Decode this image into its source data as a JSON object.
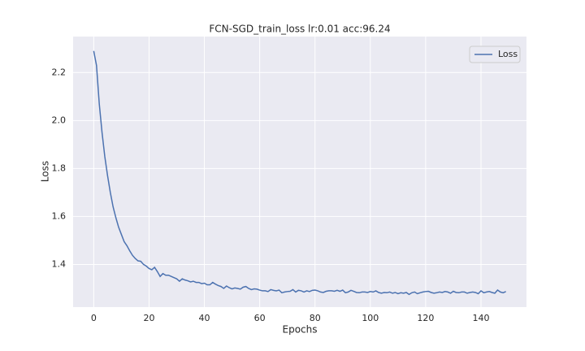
{
  "chart_data": {
    "type": "line",
    "title": "FCN-SGD_train_loss lr:0.01 acc:96.24",
    "xlabel": "Epochs",
    "ylabel": "Loss",
    "x": [
      0,
      1,
      2,
      3,
      4,
      5,
      6,
      7,
      8,
      9,
      10,
      11,
      12,
      13,
      14,
      15,
      16,
      17,
      18,
      19,
      20,
      21,
      22,
      23,
      24,
      25,
      26,
      27,
      28,
      29,
      30,
      31,
      32,
      33,
      34,
      35,
      36,
      37,
      38,
      39,
      40,
      41,
      42,
      43,
      44,
      45,
      46,
      47,
      48,
      49,
      50,
      51,
      52,
      53,
      54,
      55,
      56,
      57,
      58,
      59,
      60,
      61,
      62,
      63,
      64,
      65,
      66,
      67,
      68,
      69,
      70,
      71,
      72,
      73,
      74,
      75,
      76,
      77,
      78,
      79,
      80,
      81,
      82,
      83,
      84,
      85,
      86,
      87,
      88,
      89,
      90,
      91,
      92,
      93,
      94,
      95,
      96,
      97,
      98,
      99,
      100,
      101,
      102,
      103,
      104,
      105,
      106,
      107,
      108,
      109,
      110,
      111,
      112,
      113,
      114,
      115,
      116,
      117,
      118,
      119,
      120,
      121,
      122,
      123,
      124,
      125,
      126,
      127,
      128,
      129,
      130,
      131,
      132,
      133,
      134,
      135,
      136,
      137,
      138,
      139,
      140,
      141,
      142,
      143,
      144,
      145,
      146,
      147,
      148,
      149
    ],
    "series": [
      {
        "name": "Loss",
        "color": "#4c72b0",
        "values": [
          2.29,
          2.23,
          2.07,
          1.95,
          1.85,
          1.77,
          1.7,
          1.64,
          1.595,
          1.555,
          1.525,
          1.495,
          1.478,
          1.457,
          1.438,
          1.425,
          1.415,
          1.413,
          1.4,
          1.393,
          1.383,
          1.378,
          1.388,
          1.37,
          1.35,
          1.362,
          1.355,
          1.355,
          1.35,
          1.345,
          1.34,
          1.33,
          1.34,
          1.335,
          1.332,
          1.327,
          1.33,
          1.325,
          1.325,
          1.32,
          1.322,
          1.315,
          1.315,
          1.325,
          1.318,
          1.312,
          1.308,
          1.3,
          1.31,
          1.303,
          1.298,
          1.302,
          1.3,
          1.297,
          1.305,
          1.308,
          1.3,
          1.295,
          1.298,
          1.297,
          1.293,
          1.29,
          1.29,
          1.287,
          1.295,
          1.292,
          1.29,
          1.293,
          1.282,
          1.285,
          1.287,
          1.288,
          1.295,
          1.285,
          1.292,
          1.29,
          1.285,
          1.29,
          1.287,
          1.292,
          1.293,
          1.29,
          1.285,
          1.283,
          1.288,
          1.29,
          1.29,
          1.288,
          1.292,
          1.288,
          1.293,
          1.282,
          1.285,
          1.292,
          1.288,
          1.283,
          1.282,
          1.285,
          1.285,
          1.283,
          1.287,
          1.285,
          1.29,
          1.283,
          1.28,
          1.283,
          1.282,
          1.285,
          1.28,
          1.283,
          1.278,
          1.282,
          1.28,
          1.283,
          1.275,
          1.282,
          1.285,
          1.278,
          1.282,
          1.285,
          1.287,
          1.288,
          1.283,
          1.28,
          1.282,
          1.285,
          1.283,
          1.287,
          1.285,
          1.28,
          1.288,
          1.283,
          1.282,
          1.285,
          1.285,
          1.28,
          1.283,
          1.285,
          1.283,
          1.278,
          1.29,
          1.282,
          1.285,
          1.287,
          1.283,
          1.28,
          1.293,
          1.285,
          1.282,
          1.287
        ]
      }
    ],
    "xlim": [
      -7.45,
      156.45
    ],
    "ylim": [
      1.222,
      2.35
    ],
    "xticks": [
      0,
      20,
      40,
      60,
      80,
      100,
      120,
      140
    ],
    "yticks": [
      1.4,
      1.6,
      1.8,
      {
        "value": 2,
        "label": "2.0"
      },
      2.2
    ],
    "grid": true,
    "legend": "upper right"
  }
}
